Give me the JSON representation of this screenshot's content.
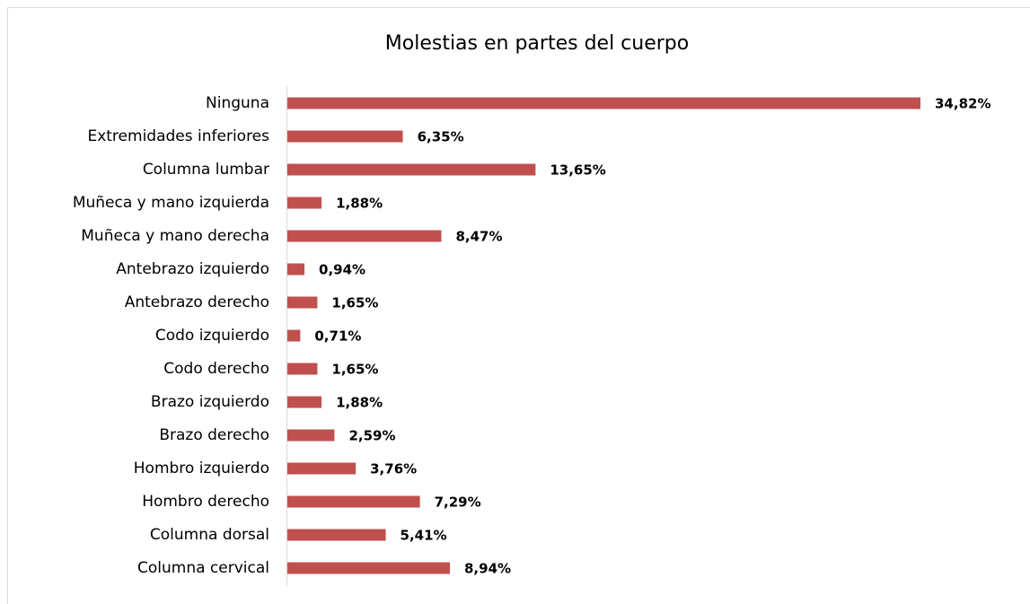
{
  "chart_data": {
    "type": "bar",
    "orientation": "horizontal",
    "title": "Molestias en partes del cuerpo",
    "categories": [
      "Ninguna",
      "Extremidades inferiores",
      "Columna lumbar",
      "Muñeca y mano izquierda",
      "Muñeca y mano derecha",
      "Antebrazo izquierdo",
      "Antebrazo derecho",
      "Codo izquierdo",
      "Codo derecho",
      "Brazo izquierdo",
      "Brazo derecho",
      "Hombro izquierdo",
      "Hombro derecho",
      "Columna dorsal",
      "Columna cervical"
    ],
    "values": [
      34.82,
      6.35,
      13.65,
      1.88,
      8.47,
      0.94,
      1.65,
      0.71,
      1.65,
      1.88,
      2.59,
      3.76,
      7.29,
      5.41,
      8.94
    ],
    "value_labels": [
      "34,82%",
      "6,35%",
      "13,65%",
      "1,88%",
      "8,47%",
      "0,94%",
      "1,65%",
      "0,71%",
      "1,65%",
      "1,88%",
      "2,59%",
      "3,76%",
      "7,29%",
      "5,41%",
      "8,94%"
    ],
    "color": "#c0504d"
  }
}
